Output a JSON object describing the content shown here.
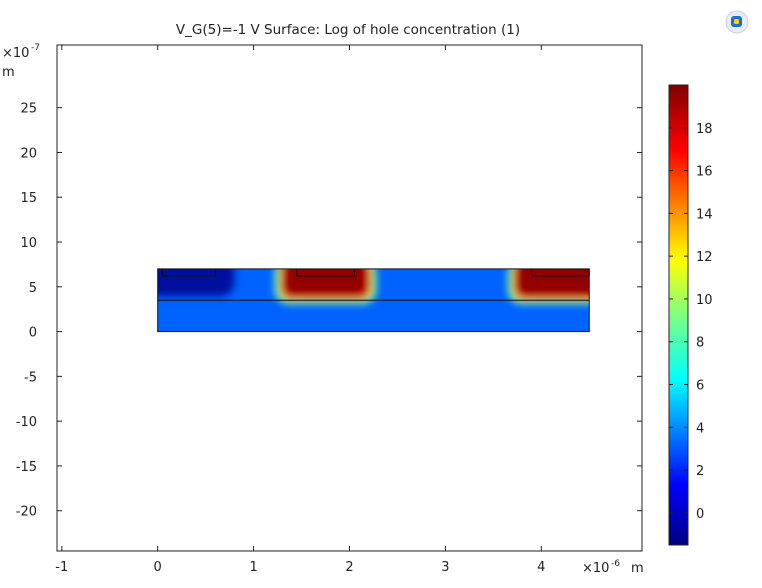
{
  "chart_data": {
    "type": "heatmap",
    "title": "V_G(5)=-1 V   Surface: Log of hole concentration (1)",
    "x_axis": {
      "range": [
        -1.05,
        5.05
      ],
      "ticks": [
        -1,
        0,
        1,
        2,
        3,
        4
      ],
      "tick_labels": [
        "-1",
        "0",
        "1",
        "2",
        "3",
        "4"
      ],
      "multiplier": "×10",
      "multiplier_exponent": "-6",
      "unit": "m"
    },
    "y_axis": {
      "range": [
        -24.5,
        32
      ],
      "ticks": [
        -20,
        -15,
        -10,
        -5,
        0,
        5,
        10,
        15,
        20,
        25
      ],
      "tick_labels": [
        "-20",
        "-15",
        "-10",
        "-5",
        "0",
        "5",
        "10",
        "15",
        "20",
        "25"
      ],
      "multiplier": "×10",
      "multiplier_exponent": "-7",
      "unit": "m"
    },
    "colorbar": {
      "range": [
        -1.5,
        20
      ],
      "ticks": [
        0,
        2,
        4,
        6,
        8,
        10,
        12,
        14,
        16,
        18
      ],
      "tick_labels": [
        "0",
        "2",
        "4",
        "6",
        "8",
        "10",
        "12",
        "14",
        "16",
        "18"
      ],
      "colormap": "rainbow"
    },
    "geometry": {
      "device_x": [
        0,
        4.5
      ],
      "device_y": [
        0,
        7
      ],
      "interface_y": 3.5,
      "contacts": [
        {
          "x": [
            0.05,
            0.6
          ],
          "y": [
            6.2,
            7
          ]
        },
        {
          "x": [
            1.45,
            2.05
          ],
          "y": [
            6.2,
            7
          ]
        },
        {
          "x": [
            3.9,
            4.5
          ],
          "y": [
            6.2,
            7
          ]
        }
      ],
      "high_regions": [
        {
          "x": [
            1.25,
            2.25
          ],
          "y": [
            3.3,
            7
          ],
          "value": 19.5
        },
        {
          "x": [
            3.68,
            4.5
          ],
          "y": [
            3.3,
            7
          ],
          "value": 19.5
        }
      ],
      "background_value": 3.2,
      "low_region": {
        "x": [
          0,
          0.8
        ],
        "y": [
          3.5,
          7
        ],
        "value": -1.2
      }
    }
  }
}
